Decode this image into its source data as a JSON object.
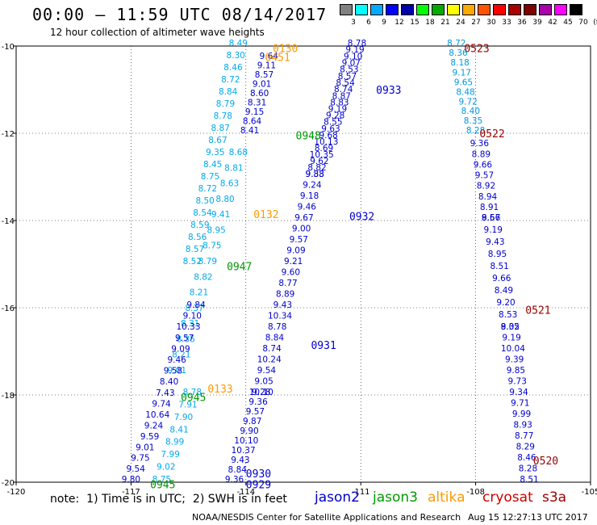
{
  "header": {
    "title": "00:00 – 11:59 UTC 08/14/2017",
    "subtitle": "12 hour collection of altimeter wave heights"
  },
  "scale": {
    "labels": [
      "3",
      "6",
      "9",
      "12",
      "15",
      "18",
      "21",
      "24",
      "27",
      "30",
      "33",
      "36",
      "39",
      "42",
      "45",
      "70",
      "(ft)"
    ],
    "colors": [
      "#808080",
      "#00ffff",
      "#00aaff",
      "#0000ff",
      "#0000aa",
      "#00ff00",
      "#00aa00",
      "#ffff00",
      "#ffaa00",
      "#ff5500",
      "#ff0000",
      "#aa0000",
      "#800000",
      "#aa00aa",
      "#ff00ff",
      "#000000"
    ]
  },
  "footer": {
    "note": "note:  1) Time is in UTC;  2) SWH is in feet",
    "credit": "NOAA/NESDIS Center for Satellite Applications and Research",
    "timestamp": "Aug 15 12:27:13 UTC 2017"
  },
  "legend": [
    {
      "name": "jason2",
      "color": "#0000cc"
    },
    {
      "name": "jason3",
      "color": "#009900"
    },
    {
      "name": "altika",
      "color": "#ff9900"
    },
    {
      "name": "cryosat",
      "color": "#cc0000"
    },
    {
      "name": "s3a",
      "color": "#990000"
    }
  ],
  "map": {
    "x_ticks": [
      "-120",
      "-117",
      "-114",
      "-111",
      "-108",
      "-105"
    ],
    "y_ticks": [
      "-10",
      "-12",
      "-14",
      "-16",
      "-18",
      "-20"
    ]
  },
  "tracks": [
    {
      "name": "jason2-0933",
      "color": "#0000cc",
      "label": "0933",
      "lon": [
        -111.1,
        -111.6,
        -112.2
      ],
      "lat": [
        -10.0,
        -11.5,
        -13.0
      ],
      "values": [
        "8.78",
        "9.19",
        "9.10",
        "9.07",
        "8.53",
        "8.57",
        "8.54",
        "8.74",
        "8.87",
        "8.83",
        "9.19",
        "9.28",
        "8.55",
        "9.63",
        "9.68",
        "10.13",
        "8.69",
        "10.35",
        "9.62",
        "8.82",
        "9.33"
      ]
    },
    {
      "name": "jason2-0932",
      "color": "#0000cc",
      "label": "0932",
      "lon": [
        -112.2,
        -112.9,
        -113.6
      ],
      "lat": [
        -13.0,
        -15.5,
        -18.0
      ],
      "values": [
        "9.88",
        "9.24",
        "9.18",
        "9.46",
        "9.67",
        "9.00",
        "9.57",
        "9.09",
        "9.21",
        "9.60",
        "8.77",
        "8.89",
        "9.43",
        "10.34",
        "8.78",
        "8.84",
        "8.74",
        "10.24",
        "9.54",
        "9.05",
        "9.28"
      ]
    },
    {
      "name": "jason2-0931",
      "color": "#0000cc",
      "label": "0931",
      "lon": [
        -113.6,
        -114.3
      ],
      "lat": [
        -18.0,
        -20.0
      ],
      "values": [
        "10.10",
        "9.36",
        "9.57",
        "9.87",
        "9.90",
        "10.10",
        "10.37",
        "9.43",
        "8.84",
        "9.36"
      ]
    },
    {
      "name": "cryosat-0523",
      "color": "#0099dd",
      "label": "0523",
      "lon": [
        -108.5,
        -108.3,
        -108.0
      ],
      "lat": [
        -10.0,
        -11.0,
        -12.0
      ],
      "values": [
        "8.72",
        "8.36",
        "8.18",
        "9.17",
        "9.65",
        "8.48",
        "9.72",
        "8.40",
        "8.35",
        "8.28"
      ]
    },
    {
      "name": "cryosat-0522",
      "color": "#0000cc",
      "label": "0522",
      "lon": [
        -107.9,
        -107.6
      ],
      "lat": [
        -12.3,
        -14.0
      ],
      "values": [
        "9.36",
        "8.89",
        "9.66",
        "9.57",
        "8.92",
        "8.94",
        "8.91",
        "8.67"
      ]
    },
    {
      "name": "s3a-0521",
      "color": "#0000cc",
      "label": "0521",
      "lon": [
        -107.6,
        -107.3,
        -107.1
      ],
      "lat": [
        -14.0,
        -15.5,
        -16.5
      ],
      "values": [
        "9.56",
        "9.19",
        "9.43",
        "8.95",
        "8.51",
        "9.66",
        "8.49",
        "9.20",
        "8.53",
        "8.02"
      ]
    },
    {
      "name": "s3a-0520",
      "color": "#0000cc",
      "label": "0520",
      "lon": [
        -107.1,
        -106.8,
        -106.6
      ],
      "lat": [
        -16.5,
        -18.5,
        -20.0
      ],
      "values": [
        "9.35",
        "9.19",
        "10.04",
        "9.39",
        "9.85",
        "9.73",
        "9.34",
        "9.71",
        "9.99",
        "8.93",
        "8.77",
        "8.29",
        "8.46",
        "8.28",
        "8.51"
      ]
    },
    {
      "name": "altika-0130",
      "color": "#00aaee",
      "label": "",
      "lon": [
        -114.2,
        -114.8,
        -115.4
      ],
      "lat": [
        -10.0,
        -12.5,
        -15.0
      ],
      "values": [
        "8.49",
        "8.30",
        "8.46",
        "8.72",
        "8.84",
        "8.79",
        "8.78",
        "8.87",
        "8.67",
        "9.35",
        "8.45",
        "8.75",
        "8.72",
        "8.50",
        "8.54",
        "8.59",
        "8.56",
        "8.57",
        "8.52"
      ]
    },
    {
      "name": "jason3-0948",
      "color": "#0000cc",
      "label": "",
      "lon": [
        -113.4,
        -113.6,
        -113.9
      ],
      "lat": [
        -10.3,
        -11.0,
        -12.0
      ],
      "values": [
        "9.64",
        "9.11",
        "8.57",
        "9.01",
        "8.60",
        "8.31",
        "9.15",
        "8.64",
        "8.41"
      ]
    },
    {
      "name": "jason3-0947",
      "color": "#00aaee",
      "label": "",
      "lon": [
        -114.2,
        -115.0,
        -115.8
      ],
      "lat": [
        -12.5,
        -15.0,
        -17.5
      ],
      "values": [
        "8.68",
        "8.81",
        "8.63",
        "8.80",
        "9.41",
        "8.95",
        "8.75",
        "8.79",
        "8.82",
        "8.21",
        "8.37",
        "8.31",
        "8.35",
        "8.21",
        "9.01"
      ]
    },
    {
      "name": "jason3-0945",
      "color": "#0000cc",
      "label": "",
      "lon": [
        -115.3,
        -115.9,
        -116.5,
        -117.0
      ],
      "lat": [
        -16.0,
        -17.5,
        -19.0,
        -20.0
      ],
      "values": [
        "9.84",
        "9.10",
        "10.33",
        "9.57",
        "9.09",
        "9.46",
        "9.58",
        "8.40",
        "7.43",
        "9.74",
        "10.64",
        "9.24",
        "9.59",
        "9.01",
        "9.75",
        "9.54",
        "9.80"
      ]
    },
    {
      "name": "jason3-0945b",
      "color": "#00aaee",
      "label": "",
      "lon": [
        -115.4,
        -115.8,
        -116.2
      ],
      "lat": [
        -18.0,
        -19.0,
        -20.0
      ],
      "values": [
        "8.78",
        "7.91",
        "7.90",
        "8.41",
        "8.99",
        "7.99",
        "9.02",
        "8.75"
      ]
    }
  ],
  "labels": [
    {
      "text": "0130",
      "color": "#ff9900",
      "lon": -113.3,
      "lat": -10.05
    },
    {
      "text": "0451",
      "color": "#ff9900",
      "lon": -113.5,
      "lat": -10.25
    },
    {
      "text": "0948",
      "color": "#009900",
      "lon": -112.7,
      "lat": -12.05
    },
    {
      "text": "0132",
      "color": "#ff9900",
      "lon": -113.8,
      "lat": -13.85
    },
    {
      "text": "0947",
      "color": "#009900",
      "lon": -114.5,
      "lat": -15.05
    },
    {
      "text": "0133",
      "color": "#ff9900",
      "lon": -115.0,
      "lat": -17.85
    },
    {
      "text": "0945",
      "color": "#009900",
      "lon": -115.7,
      "lat": -18.05
    },
    {
      "text": "0945",
      "color": "#009900",
      "lon": -116.5,
      "lat": -20.05
    },
    {
      "text": "0933",
      "color": "#0000cc",
      "lon": -110.6,
      "lat": -11.0
    },
    {
      "text": "0932",
      "color": "#0000cc",
      "lon": -111.3,
      "lat": -13.9
    },
    {
      "text": "0931",
      "color": "#0000cc",
      "lon": -112.3,
      "lat": -16.85
    },
    {
      "text": "0930",
      "color": "#0000cc",
      "lon": -114.0,
      "lat": -19.8
    },
    {
      "text": "0929",
      "color": "#0000cc",
      "lon": -114.0,
      "lat": -20.05
    },
    {
      "text": "0523",
      "color": "#990000",
      "lon": -108.3,
      "lat": -10.05
    },
    {
      "text": "0522",
      "color": "#990000",
      "lon": -107.9,
      "lat": -12.0
    },
    {
      "text": "0521",
      "color": "#990000",
      "lon": -106.7,
      "lat": -16.05
    },
    {
      "text": "0520",
      "color": "#990000",
      "lon": -106.5,
      "lat": -19.5
    }
  ]
}
